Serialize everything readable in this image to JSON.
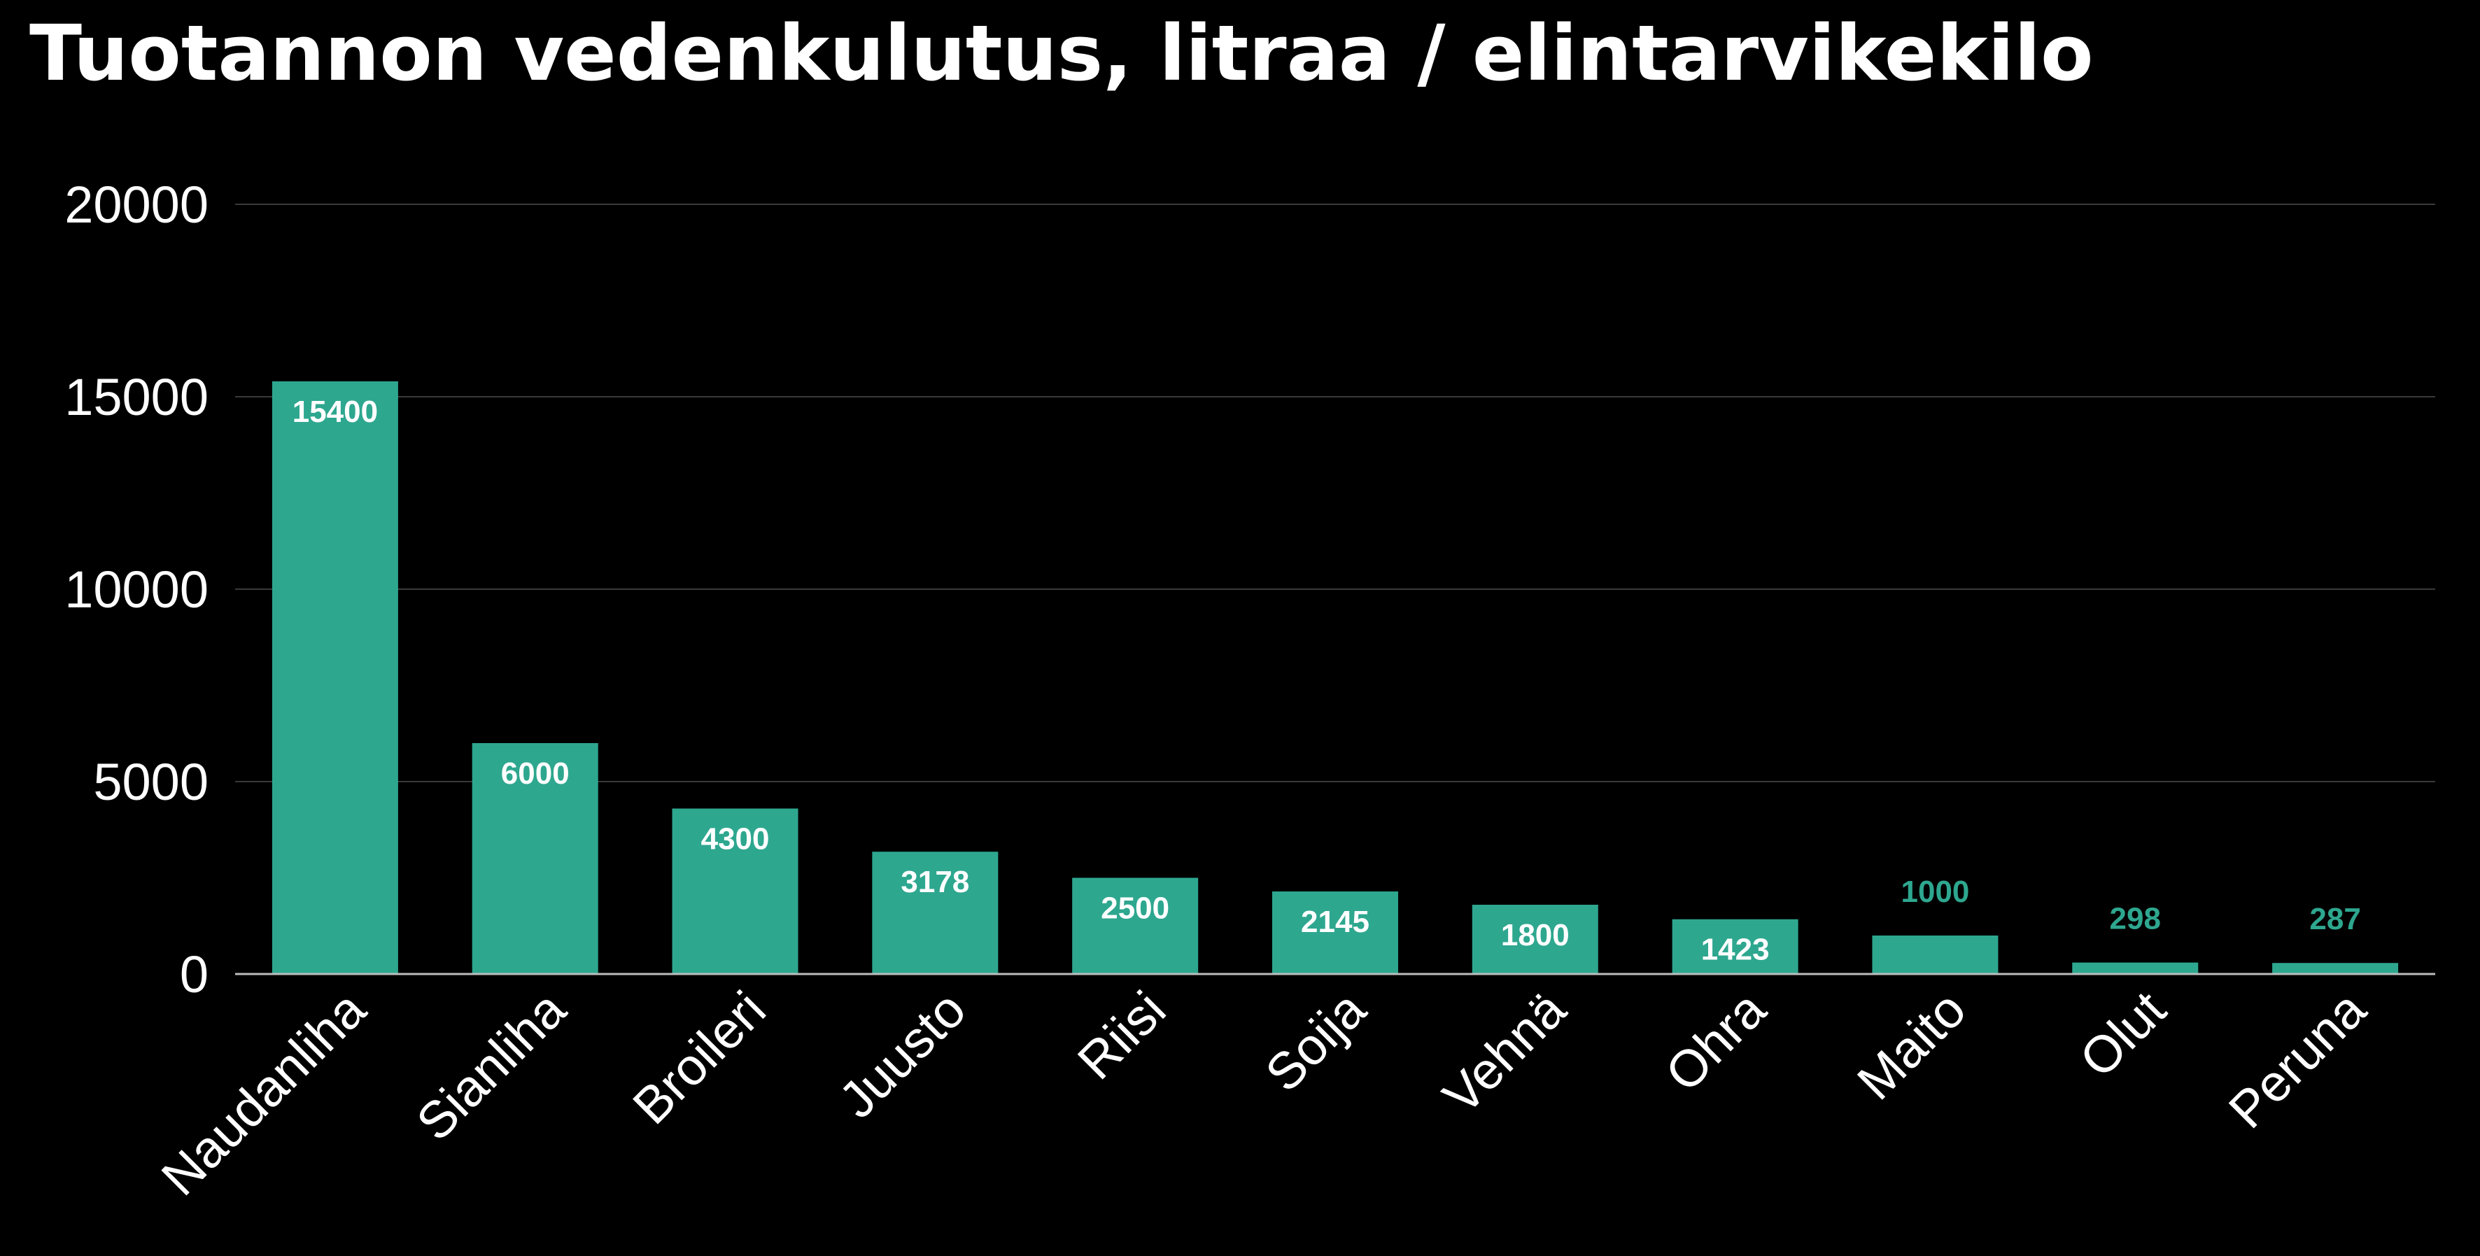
{
  "chart_data": {
    "type": "bar",
    "title": "Tuotannon vedenkulutus, litraa / elintarvikekilo",
    "xlabel": "",
    "ylabel": "",
    "ylim": [
      0,
      20000
    ],
    "yticks": [
      0,
      5000,
      10000,
      15000,
      20000
    ],
    "categories": [
      "Naudanliha",
      "Sianliha",
      "Broileri",
      "Juusto",
      "Riisi",
      "Soija",
      "Vehnä",
      "Ohra",
      "Maito",
      "Olut",
      "Peruna"
    ],
    "values": [
      15400,
      6000,
      4300,
      3178,
      2500,
      2145,
      1800,
      1423,
      1000,
      298,
      287
    ],
    "grid": true,
    "legend": "none",
    "colors": {
      "background": "#000000",
      "bar": "#2ea78f",
      "text": "#ffffff",
      "gridline": "#3a3a3a",
      "axis": "#bdbdbd"
    }
  }
}
